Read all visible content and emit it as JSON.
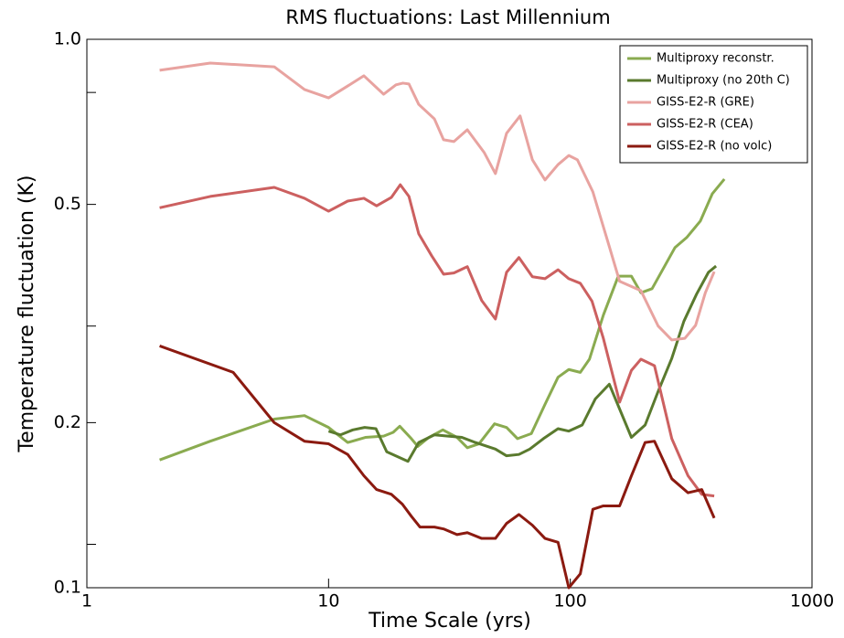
{
  "chart_data": {
    "type": "line",
    "title": "RMS fluctuations: Last Millennium",
    "x_label": "Time Scale (yrs)",
    "y_label": "Temperature fluctuation (K)",
    "xscale": "log",
    "yscale": "log",
    "xlim": [
      1,
      1000
    ],
    "ylim": [
      0.1,
      1
    ],
    "xticks": [
      1,
      10,
      100,
      1000
    ],
    "yticks": [
      {
        "value": 1,
        "label": "1.0"
      },
      0.5,
      0.2,
      0.1
    ],
    "yminorticks": [
      0.8,
      0.3,
      0.12
    ],
    "grid": false,
    "legend_position": "upper-right",
    "series": [
      {
        "name": "Multiproxy reconstr.",
        "color": "#8aab50",
        "x": [
          2.0,
          3.24,
          5.96,
          7.95,
          10,
          12,
          14.2,
          16.9,
          18.5,
          19.7,
          22,
          23.4,
          26,
          29.7,
          34,
          37.5,
          41.9,
          48.6,
          54.5,
          60.5,
          69,
          78.6,
          89,
          98.6,
          110,
          120,
          137,
          158,
          179,
          196,
          218,
          271,
          303,
          345,
          387,
          434
        ],
        "values": [
          0.171,
          0.185,
          0.203,
          0.206,
          0.196,
          0.184,
          0.188,
          0.189,
          0.192,
          0.197,
          0.187,
          0.181,
          0.188,
          0.194,
          0.188,
          0.18,
          0.183,
          0.199,
          0.196,
          0.187,
          0.191,
          0.216,
          0.242,
          0.25,
          0.247,
          0.261,
          0.314,
          0.37,
          0.37,
          0.345,
          0.351,
          0.417,
          0.435,
          0.466,
          0.523,
          0.556
        ]
      },
      {
        "name": "Multiproxy (no 20th C)",
        "color": "#5a7a2e",
        "x": [
          10,
          11.2,
          12.6,
          14.1,
          15.7,
          17.4,
          21.3,
          23.6,
          27.4,
          31.2,
          35.6,
          40.5,
          49,
          54.5,
          61.3,
          68,
          77.4,
          89,
          98.6,
          112,
          127,
          145,
          179,
          204,
          230,
          263,
          295,
          333,
          373,
          401
        ],
        "values": [
          0.193,
          0.19,
          0.194,
          0.196,
          0.195,
          0.177,
          0.17,
          0.184,
          0.19,
          0.189,
          0.188,
          0.184,
          0.179,
          0.174,
          0.175,
          0.179,
          0.187,
          0.195,
          0.193,
          0.198,
          0.221,
          0.235,
          0.188,
          0.198,
          0.227,
          0.262,
          0.306,
          0.343,
          0.376,
          0.386
        ]
      },
      {
        "name": "GISS-E2-R (GRE)",
        "color": "#e8a3a0",
        "x": [
          2.0,
          3.24,
          5.96,
          7.95,
          10,
          12,
          14,
          16.9,
          19,
          20.3,
          21.5,
          23.6,
          27.4,
          29.9,
          33,
          37.5,
          44,
          49,
          54.5,
          62,
          69.7,
          78.6,
          89,
          98.6,
          107,
          124,
          145,
          160,
          196,
          231,
          263,
          298,
          330,
          362,
          394
        ],
        "values": [
          0.878,
          0.905,
          0.891,
          0.81,
          0.782,
          0.822,
          0.858,
          0.794,
          0.826,
          0.832,
          0.829,
          0.761,
          0.716,
          0.656,
          0.651,
          0.684,
          0.622,
          0.569,
          0.674,
          0.725,
          0.603,
          0.554,
          0.591,
          0.614,
          0.603,
          0.527,
          0.419,
          0.362,
          0.348,
          0.3,
          0.283,
          0.285,
          0.301,
          0.345,
          0.377
        ]
      },
      {
        "name": "GISS-E2-R (CEA)",
        "color": "#cc6060",
        "x": [
          2.0,
          3.24,
          5.96,
          7.95,
          10,
          12,
          14,
          15.8,
          18.2,
          19.8,
          21.5,
          23.6,
          26.7,
          29.9,
          33,
          37.5,
          43,
          49,
          54.5,
          61.3,
          69.7,
          78.6,
          89,
          98.6,
          110,
          123,
          137,
          160,
          179,
          196,
          223,
          263,
          307,
          350,
          394
        ],
        "values": [
          0.493,
          0.517,
          0.537,
          0.513,
          0.486,
          0.507,
          0.513,
          0.497,
          0.515,
          0.543,
          0.517,
          0.442,
          0.403,
          0.373,
          0.375,
          0.385,
          0.334,
          0.309,
          0.376,
          0.4,
          0.369,
          0.366,
          0.38,
          0.366,
          0.359,
          0.333,
          0.285,
          0.218,
          0.249,
          0.261,
          0.254,
          0.187,
          0.16,
          0.148,
          0.147
        ]
      },
      {
        "name": "GISS-E2-R (no volc)",
        "color": "#8b1a10",
        "x": [
          2.0,
          4.03,
          5.96,
          7.95,
          10,
          12,
          14,
          15.8,
          18.2,
          20.2,
          22,
          23.9,
          27.4,
          29.9,
          34,
          37.5,
          43,
          49,
          54.5,
          61.3,
          69.7,
          78.6,
          89,
          98.6,
          110,
          124,
          137,
          160,
          179,
          204,
          223,
          263,
          307,
          350,
          394
        ],
        "values": [
          0.276,
          0.247,
          0.2,
          0.185,
          0.183,
          0.175,
          0.16,
          0.151,
          0.148,
          0.142,
          0.135,
          0.129,
          0.129,
          0.128,
          0.125,
          0.126,
          0.123,
          0.123,
          0.131,
          0.136,
          0.13,
          0.123,
          0.121,
          0.1,
          0.106,
          0.139,
          0.141,
          0.141,
          0.16,
          0.184,
          0.185,
          0.158,
          0.149,
          0.151,
          0.134
        ]
      }
    ]
  }
}
